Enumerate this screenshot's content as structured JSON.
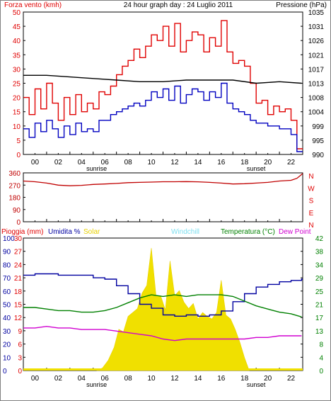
{
  "header": {
    "left": "Forza vento (kmh)",
    "center": "24 hour graph day : 24 Luglio 2011",
    "right": "Pressione (hPa)"
  },
  "time_labels": [
    "00",
    "02",
    "04",
    "06",
    "08",
    "10",
    "12",
    "14",
    "16",
    "18",
    "20",
    "22"
  ],
  "sunrise_label": "sunrise",
  "sunset_label": "sunset",
  "colors": {
    "wind_max": "#e00000",
    "wind_avg": "#0000c0",
    "pressure": "#000000",
    "direction": "#c00000",
    "humidity": "#0000a0",
    "solar": "#f0e000",
    "temperature": "#008000",
    "dewpoint": "#d000d0",
    "rain": "#ff0000"
  },
  "chart_data": [
    {
      "type": "line",
      "panel": "wind_pressure",
      "x_range": [
        0,
        24
      ],
      "left_axis": {
        "ticks": [
          0,
          5,
          10,
          15,
          20,
          25,
          30,
          35,
          40,
          45,
          50
        ],
        "ylim": [
          0,
          50
        ]
      },
      "right_axis": {
        "ticks": [
          990,
          995,
          999,
          1004,
          1008,
          1013,
          1017,
          1021,
          1026,
          1031,
          1035
        ],
        "ylim": [
          990,
          1035
        ]
      },
      "series": [
        {
          "name": "Forza vento (kmh)",
          "key": "wind_max",
          "x": [
            0,
            0.5,
            1,
            1.5,
            2,
            2.5,
            3,
            3.5,
            4,
            4.5,
            5,
            5.5,
            6,
            6.5,
            7,
            7.5,
            8,
            8.5,
            9,
            9.5,
            10,
            10.5,
            11,
            11.5,
            12,
            12.5,
            13,
            13.5,
            14,
            14.5,
            15,
            15.5,
            16,
            16.5,
            17,
            17.5,
            18,
            18.5,
            19,
            19.5,
            20,
            20.5,
            21,
            21.5,
            22,
            22.5,
            23,
            23.5
          ],
          "values": [
            20,
            14,
            23,
            16,
            25,
            18,
            12,
            20,
            14,
            21,
            15,
            18,
            16,
            22,
            21,
            24,
            28,
            31,
            33,
            37,
            34,
            38,
            42,
            40,
            45,
            38,
            46,
            36,
            40,
            43,
            42,
            36,
            41,
            38,
            47,
            36,
            32,
            33,
            31,
            25,
            18,
            19,
            14,
            17,
            15,
            16,
            12,
            2
          ]
        },
        {
          "name": "wind average",
          "key": "wind_avg",
          "x": [
            0,
            0.5,
            1,
            1.5,
            2,
            2.5,
            3,
            3.5,
            4,
            4.5,
            5,
            5.5,
            6,
            6.5,
            7,
            7.5,
            8,
            8.5,
            9,
            9.5,
            10,
            10.5,
            11,
            11.5,
            12,
            12.5,
            13,
            13.5,
            14,
            14.5,
            15,
            15.5,
            16,
            16.5,
            17,
            17.5,
            18,
            18.5,
            19,
            19.5,
            20,
            20.5,
            21,
            21.5,
            22,
            22.5,
            23,
            23.5
          ],
          "values": [
            9,
            6,
            11,
            8,
            12,
            9,
            6,
            10,
            7,
            11,
            8,
            9,
            8,
            12,
            12,
            14,
            15,
            16,
            17,
            18,
            17,
            19,
            22,
            20,
            23,
            19,
            24,
            18,
            21,
            23,
            22,
            19,
            22,
            20,
            25,
            18,
            16,
            15,
            14,
            12,
            11,
            11,
            10,
            10,
            9,
            9,
            7,
            1
          ]
        },
        {
          "name": "Pressione (hPa)",
          "key": "pressure",
          "x": [
            0,
            2,
            4,
            6,
            8,
            10,
            12,
            14,
            16,
            18,
            20,
            22,
            23.9
          ],
          "values": [
            1015,
            1015,
            1014.5,
            1014,
            1013.5,
            1013,
            1013,
            1013.5,
            1013.5,
            1013.5,
            1012.5,
            1013,
            1012.5
          ]
        }
      ]
    },
    {
      "type": "line",
      "panel": "wind_direction",
      "x_range": [
        0,
        24
      ],
      "left_axis": {
        "ticks": [
          0,
          90,
          180,
          270,
          360
        ],
        "ylim": [
          0,
          360
        ]
      },
      "right_axis_labels": [
        "N",
        "W",
        "S",
        "E",
        "N"
      ],
      "series": [
        {
          "name": "direction",
          "key": "direction",
          "x": [
            0,
            1,
            2,
            3,
            4,
            5,
            6,
            7,
            8,
            9,
            10,
            11,
            12,
            13,
            14,
            15,
            16,
            17,
            18,
            19,
            20,
            21,
            22,
            23,
            23.5,
            24
          ],
          "values": [
            300,
            295,
            285,
            270,
            265,
            268,
            275,
            278,
            282,
            288,
            290,
            292,
            295,
            295,
            296,
            294,
            290,
            285,
            278,
            280,
            285,
            290,
            300,
            305,
            320,
            355
          ]
        }
      ]
    },
    {
      "type": "area",
      "panel": "rain_humidity_temp",
      "x_range": [
        0,
        24
      ],
      "header_labels": {
        "rain": "Pioggia (mm)",
        "humidity": "Umidita %",
        "solar": "Solar",
        "windchill": "Windchill",
        "temperature": "Temperatura (°C)",
        "dewpoint": "Dew Point"
      },
      "left_axis_rain": {
        "ticks": [
          0,
          3,
          6,
          9,
          12,
          15,
          18,
          21,
          24,
          27,
          30
        ],
        "ylim": [
          0,
          30
        ]
      },
      "left_axis_humidity": {
        "ticks": [
          0,
          10,
          20,
          30,
          40,
          50,
          60,
          70,
          80,
          90,
          100
        ],
        "ylim": [
          0,
          100
        ]
      },
      "right_axis_temperature": {
        "ticks": [
          0,
          4,
          8,
          13,
          17,
          21,
          25,
          29,
          34,
          38,
          42
        ],
        "ylim": [
          0,
          42
        ]
      },
      "series": [
        {
          "name": "Umidita %",
          "key": "humidity",
          "x": [
            0,
            1,
            2,
            3,
            4,
            5,
            6,
            7,
            8,
            9,
            10,
            11,
            12,
            13,
            14,
            15,
            16,
            17,
            18,
            19,
            20,
            21,
            22,
            23,
            23.9
          ],
          "values": [
            72,
            73,
            73,
            72,
            72,
            72,
            70,
            69,
            64,
            58,
            50,
            47,
            42,
            41,
            42,
            41,
            42,
            45,
            52,
            58,
            63,
            65,
            67,
            68,
            69
          ]
        },
        {
          "name": "Temperatura (°C)",
          "key": "temperature",
          "x": [
            0,
            1,
            2,
            3,
            4,
            5,
            6,
            7,
            8,
            9,
            10,
            11,
            12,
            13,
            14,
            15,
            16,
            17,
            18,
            19,
            20,
            21,
            22,
            23,
            23.9
          ],
          "values": [
            20,
            20,
            19.5,
            19,
            19,
            18.5,
            18.5,
            19,
            20,
            21.5,
            23,
            24,
            23.5,
            24,
            23.5,
            24,
            24,
            24,
            23.5,
            22,
            20.5,
            19.5,
            18.5,
            18,
            17
          ]
        },
        {
          "name": "Dew Point",
          "key": "dewpoint",
          "x": [
            0,
            1,
            2,
            3,
            4,
            5,
            6,
            7,
            8,
            9,
            10,
            11,
            12,
            13,
            14,
            15,
            16,
            17,
            18,
            19,
            20,
            21,
            22,
            23,
            23.9
          ],
          "values": [
            13.5,
            13.5,
            14,
            13.5,
            13.5,
            13,
            13,
            13,
            12.5,
            12,
            11.5,
            11,
            10,
            9.5,
            10,
            10,
            10,
            10,
            10,
            10,
            10.5,
            10.5,
            11,
            11,
            11
          ]
        },
        {
          "name": "Solar",
          "key": "solar",
          "x": [
            6.3,
            6.8,
            7.3,
            7.8,
            8.2,
            8.6,
            9,
            9.4,
            9.8,
            10.2,
            10.6,
            11,
            11.4,
            11.8,
            12.2,
            12.6,
            13,
            13.4,
            13.8,
            14.2,
            14.6,
            15,
            15.4,
            15.8,
            16.2,
            16.6,
            17,
            17.4,
            17.8,
            18.2,
            18.6,
            19,
            19.4
          ],
          "values": [
            0,
            2,
            8,
            18,
            32,
            30,
            42,
            45,
            48,
            60,
            66,
            95,
            58,
            58,
            47,
            85,
            58,
            62,
            53,
            48,
            52,
            40,
            45,
            42,
            40,
            45,
            70,
            43,
            40,
            32,
            22,
            10,
            0
          ]
        },
        {
          "name": "rain",
          "key": "rain",
          "x": [
            0,
            24
          ],
          "values": [
            0.1,
            0.1
          ]
        }
      ]
    }
  ]
}
